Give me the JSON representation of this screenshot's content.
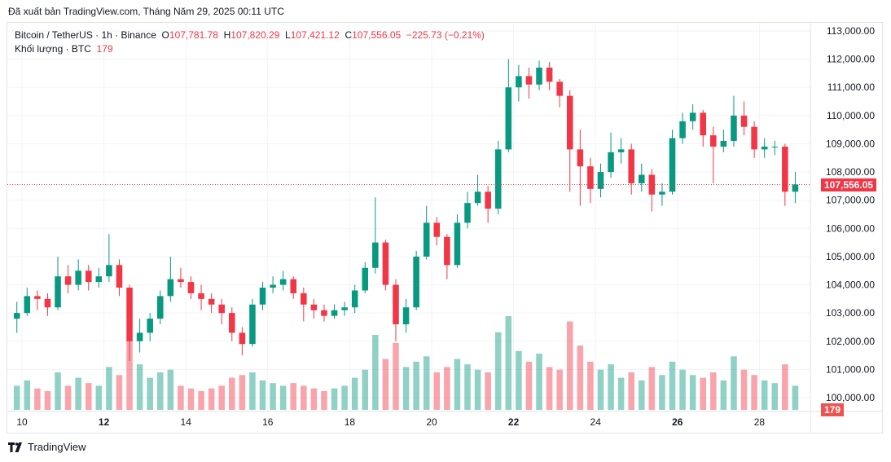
{
  "published": "Đã xuất bản TradingView.com, Tháng Năm 29, 2025 00:11 UTC",
  "legend": {
    "symbol": "Bitcoin / TetherUS · 1h · Binance",
    "o_label": "O",
    "o": "107,781.78",
    "h_label": "H",
    "h": "107,820.29",
    "l_label": "L",
    "l": "107,421.12",
    "c_label": "C",
    "c": "107,556.05",
    "change": "−225.73 (−0.21%)",
    "volume_label": "Khối lượng · BTC",
    "volume": "179"
  },
  "last_price_badge": "107,556.05",
  "last_volume_badge": "179",
  "logo_text": "TradingView",
  "colors": {
    "up": "#089981",
    "down": "#f23645",
    "grid": "#f0f3fa",
    "axis_text": "#131722"
  },
  "chart_data": {
    "type": "candlestick",
    "y_ticks": [
      "113,000.00",
      "112,000.00",
      "111,000.00",
      "110,000.00",
      "109,000.00",
      "108,000.00",
      "107,000.00",
      "106,000.00",
      "105,000.00",
      "104,000.00",
      "103,000.00",
      "102,000.00",
      "101,000.00",
      "100,000.00"
    ],
    "y_tick_values": [
      113000,
      112000,
      111000,
      110000,
      109000,
      108000,
      107000,
      106000,
      105000,
      104000,
      103000,
      102000,
      101000,
      100000
    ],
    "ylim": [
      100000,
      113000
    ],
    "x_ticks": [
      {
        "label": "10",
        "day": 10,
        "bold": false
      },
      {
        "label": "12",
        "day": 12,
        "bold": true
      },
      {
        "label": "14",
        "day": 14,
        "bold": false
      },
      {
        "label": "16",
        "day": 16,
        "bold": false
      },
      {
        "label": "18",
        "day": 18,
        "bold": false
      },
      {
        "label": "20",
        "day": 20,
        "bold": false
      },
      {
        "label": "22",
        "day": 22,
        "bold": true
      },
      {
        "label": "24",
        "day": 24,
        "bold": false
      },
      {
        "label": "26",
        "day": 26,
        "bold": true
      },
      {
        "label": "28",
        "day": 28,
        "bold": false
      }
    ],
    "last_price": 107556.05,
    "grid": true,
    "candles_start_day": 9.75,
    "candles_step_days": 0.25,
    "candles_ohlc": [
      [
        102800,
        103400,
        102300,
        103000
      ],
      [
        103000,
        103900,
        102900,
        103600
      ],
      [
        103600,
        103800,
        103100,
        103500
      ],
      [
        103500,
        103700,
        102900,
        103200
      ],
      [
        103200,
        105000,
        103100,
        104300
      ],
      [
        104300,
        104700,
        103700,
        104000
      ],
      [
        104000,
        104900,
        103800,
        104500
      ],
      [
        104500,
        104700,
        103800,
        104100
      ],
      [
        104100,
        104600,
        103900,
        104300
      ],
      [
        104300,
        105800,
        104100,
        104700
      ],
      [
        104700,
        104900,
        103600,
        103900
      ],
      [
        103900,
        104000,
        101300,
        102000
      ],
      [
        102000,
        102800,
        101600,
        102300
      ],
      [
        102300,
        103000,
        102000,
        102800
      ],
      [
        102800,
        103800,
        102600,
        103600
      ],
      [
        103600,
        105000,
        103400,
        104200
      ],
      [
        104200,
        104600,
        103900,
        104100
      ],
      [
        104100,
        104300,
        103500,
        103700
      ],
      [
        103700,
        104000,
        103100,
        103500
      ],
      [
        103500,
        103700,
        103000,
        103300
      ],
      [
        103300,
        103500,
        102600,
        103000
      ],
      [
        103000,
        103200,
        102000,
        102300
      ],
      [
        102300,
        102500,
        101500,
        101900
      ],
      [
        101900,
        103500,
        101800,
        103300
      ],
      [
        103300,
        104100,
        103100,
        103900
      ],
      [
        103900,
        104300,
        103700,
        104000
      ],
      [
        104000,
        104500,
        103800,
        104200
      ],
      [
        104200,
        104300,
        103500,
        103700
      ],
      [
        103700,
        103900,
        102700,
        103300
      ],
      [
        103300,
        103500,
        102800,
        103100
      ],
      [
        103100,
        103300,
        102700,
        102900
      ],
      [
        102900,
        103300,
        102800,
        103100
      ],
      [
        103100,
        103400,
        102900,
        103200
      ],
      [
        103200,
        104000,
        103000,
        103800
      ],
      [
        103800,
        104800,
        103700,
        104600
      ],
      [
        104600,
        107100,
        104400,
        105500
      ],
      [
        105500,
        105600,
        103800,
        104000
      ],
      [
        104000,
        104200,
        102000,
        102600
      ],
      [
        102600,
        103500,
        102300,
        103200
      ],
      [
        103200,
        105200,
        103100,
        105000
      ],
      [
        105000,
        106800,
        104900,
        106200
      ],
      [
        106200,
        106400,
        105400,
        105700
      ],
      [
        105700,
        105800,
        104200,
        104700
      ],
      [
        104700,
        106500,
        104600,
        106200
      ],
      [
        106200,
        107300,
        106000,
        106900
      ],
      [
        106900,
        107900,
        106800,
        107300
      ],
      [
        107300,
        107500,
        106200,
        106700
      ],
      [
        106700,
        109100,
        106500,
        108800
      ],
      [
        108800,
        112000,
        108700,
        111000
      ],
      [
        111000,
        111800,
        110500,
        111400
      ],
      [
        111400,
        111700,
        110600,
        111100
      ],
      [
        111100,
        111950,
        110900,
        111700
      ],
      [
        111700,
        111900,
        110900,
        111200
      ],
      [
        111200,
        111300,
        110300,
        110700
      ],
      [
        110700,
        110900,
        107300,
        108800
      ],
      [
        108800,
        109500,
        106800,
        108200
      ],
      [
        108200,
        108500,
        106900,
        107400
      ],
      [
        107400,
        108300,
        107100,
        108000
      ],
      [
        108000,
        109400,
        107800,
        108700
      ],
      [
        108700,
        109200,
        108300,
        108800
      ],
      [
        108800,
        109000,
        107200,
        107600
      ],
      [
        107600,
        108300,
        107300,
        107900
      ],
      [
        107900,
        108100,
        106600,
        107200
      ],
      [
        107200,
        107600,
        106800,
        107300
      ],
      [
        107300,
        109500,
        107200,
        109200
      ],
      [
        109200,
        110100,
        109000,
        109800
      ],
      [
        109800,
        110400,
        109500,
        110100
      ],
      [
        110100,
        110200,
        108900,
        109300
      ],
      [
        109300,
        109600,
        107600,
        108900
      ],
      [
        108900,
        109500,
        108700,
        109100
      ],
      [
        109100,
        110700,
        108900,
        110000
      ],
      [
        110000,
        110500,
        109300,
        109600
      ],
      [
        109600,
        109800,
        108500,
        108800
      ],
      [
        108800,
        109200,
        108500,
        108900
      ],
      [
        108900,
        109100,
        108600,
        108900
      ],
      [
        108900,
        109000,
        106800,
        107300
      ],
      [
        107300,
        108000,
        106900,
        107556.05
      ]
    ],
    "volumes": [
      900,
      1100,
      800,
      700,
      1400,
      900,
      1200,
      1000,
      900,
      1600,
      1300,
      2600,
      1700,
      1200,
      1400,
      1500,
      900,
      800,
      700,
      800,
      900,
      1200,
      1300,
      1400,
      1100,
      1000,
      900,
      1000,
      900,
      800,
      700,
      800,
      900,
      1200,
      1500,
      2800,
      1900,
      2500,
      1600,
      1800,
      2000,
      1400,
      1600,
      1900,
      1700,
      1500,
      1400,
      2900,
      3500,
      2200,
      1800,
      2100,
      1600,
      1500,
      3300,
      2400,
      1800,
      1500,
      1700,
      1200,
      1400,
      1100,
      1600,
      1300,
      1800,
      1500,
      1300,
      1200,
      1400,
      1100,
      2000,
      1500,
      1300,
      1100,
      1000,
      1700,
      900
    ]
  }
}
